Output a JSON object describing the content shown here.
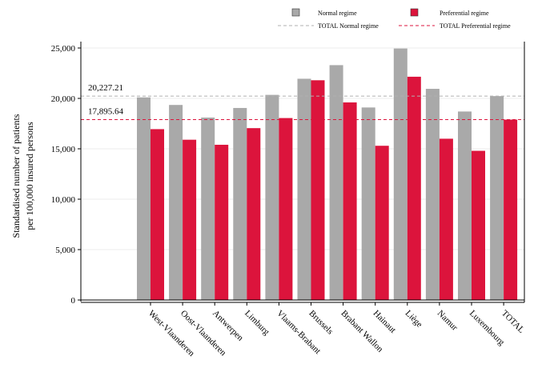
{
  "chart_data": {
    "type": "bar",
    "ylabel_line1": "Standardised number of patients",
    "ylabel_line2": "per 100,000 insured persons",
    "xlabel": "",
    "ylim": [
      0,
      25000
    ],
    "yticks": [
      0,
      5000,
      10000,
      15000,
      20000,
      25000
    ],
    "ytick_labels": [
      "0",
      "5,000",
      "10,000",
      "15,000",
      "20,000",
      "25,000"
    ],
    "grid": true,
    "legend_position": "top-right",
    "categories": [
      "West-Vlaanderen",
      "Oost-Vlaanderen",
      "Antwerpen",
      "Limburg",
      "Vlaams-Brabant",
      "Brussels",
      "Brabant Wallon",
      "Hainaut",
      "Liège",
      "Namur",
      "Luxembourg",
      "TOTAL"
    ],
    "series": [
      {
        "name": "Normal regime",
        "color": "#a9a9a9",
        "values": [
          20100,
          19350,
          18100,
          19050,
          20350,
          21950,
          23300,
          19100,
          24950,
          20950,
          18700,
          20227.21
        ]
      },
      {
        "name": "Preferential regime",
        "color": "#dc143c",
        "values": [
          16950,
          15900,
          15400,
          17050,
          18050,
          21800,
          19600,
          15300,
          22150,
          16000,
          14800,
          17895.64
        ]
      }
    ],
    "reference_lines": [
      {
        "name": "TOTAL Normal regime",
        "value": 20227.21,
        "label": "20,227.21",
        "color": "#b0b0b0"
      },
      {
        "name": "TOTAL Preferential regime",
        "value": 17895.64,
        "label": "17,895.64",
        "color": "#dc143c"
      }
    ]
  }
}
